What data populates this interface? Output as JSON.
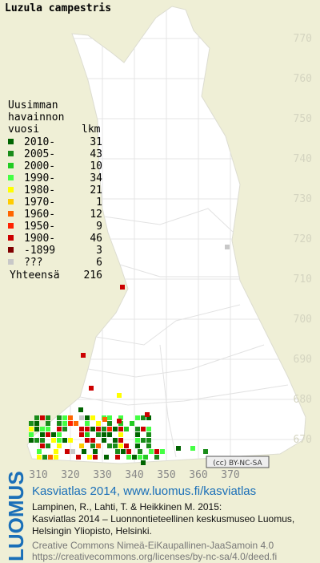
{
  "title": "Luzula campestris",
  "legend": {
    "heading": [
      "Uusimman",
      "havainnon",
      "vuosi"
    ],
    "count_heading": "lkm",
    "rows": [
      {
        "label": "2010-",
        "count": 31,
        "color": "#006400"
      },
      {
        "label": "2005-",
        "count": 43,
        "color": "#1a8c1a"
      },
      {
        "label": "2000-",
        "count": 10,
        "color": "#22cc22"
      },
      {
        "label": "1990-",
        "count": 34,
        "color": "#44ff44"
      },
      {
        "label": "1980-",
        "count": 21,
        "color": "#ffff00"
      },
      {
        "label": "1970-",
        "count": 1,
        "color": "#ffcc00"
      },
      {
        "label": "1960-",
        "count": 12,
        "color": "#ff6600"
      },
      {
        "label": "1950-",
        "count": 9,
        "color": "#ff2200"
      },
      {
        "label": "1900-",
        "count": 46,
        "color": "#cc0000"
      },
      {
        "label": "-1899",
        "count": 3,
        "color": "#800000"
      },
      {
        "label": "???",
        "count": 6,
        "color": "#c8c8c8"
      }
    ],
    "total_label": "Yhteensä",
    "total": 216
  },
  "map": {
    "y_labels": [
      770,
      760,
      750,
      740,
      730,
      720,
      710,
      700,
      690,
      680,
      670
    ],
    "x_labels": [
      310,
      320,
      330,
      340,
      350,
      360,
      370
    ],
    "license": "(cc) BY-NC-SA"
  },
  "footer": {
    "brand": "LUOMUS",
    "link": "Kasviatlas 2014, www.luomus.fi/kasviatlas",
    "citation": [
      "Lampinen, R., Lahti, T. & Heikkinen M. 2015:",
      "Kasviatlas 2014 – Luonnontieteellinen keskusmuseo Luomus,",
      "Helsingin Yliopisto, Helsinki."
    ],
    "license_lines": [
      "Creative Commons Nimeä-EiKaupallinen-JaaSamoin 4.0",
      "https://creativecommons.org/licenses/by-nc-sa/4.0/deed.fi"
    ]
  }
}
